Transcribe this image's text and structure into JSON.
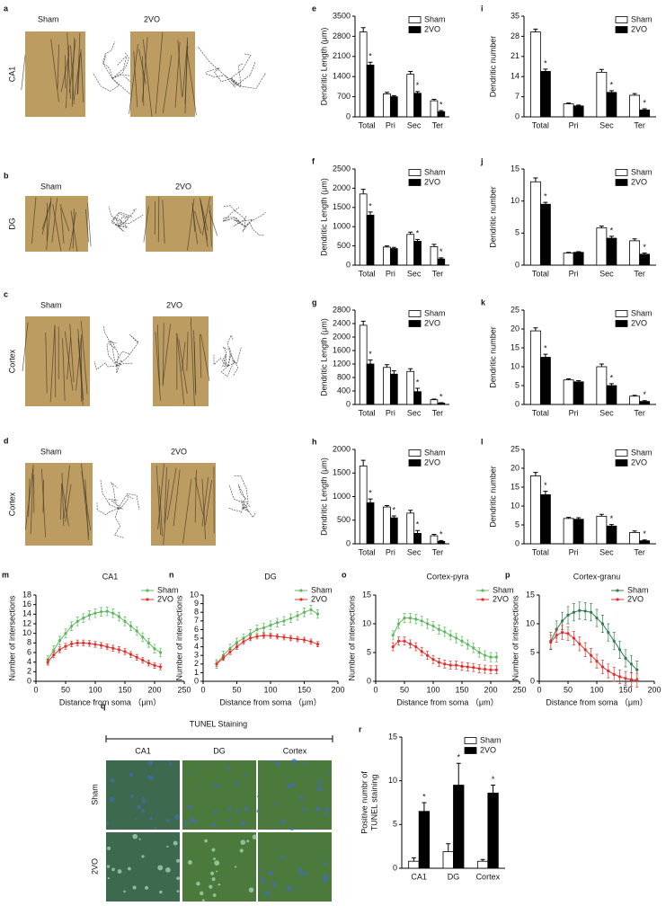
{
  "image_panels": [
    {
      "label": "a",
      "columns": [
        "Sham",
        "2VO"
      ],
      "region": "CA1"
    },
    {
      "label": "b",
      "columns": [
        "Sham",
        "2VO"
      ],
      "region": "DG"
    },
    {
      "label": "c",
      "columns": [
        "Sham",
        "2VO"
      ],
      "region": "Cortex"
    },
    {
      "label": "d",
      "columns": [
        "Sham",
        "2VO"
      ],
      "region": "Cortex"
    }
  ],
  "tunel": {
    "label": "q",
    "title": "TUNEL Staining",
    "columns": [
      "CA1",
      "DG",
      "Cortex"
    ],
    "rows": [
      "Sham",
      "2VO"
    ]
  },
  "chart_data": [
    {
      "type": "bar",
      "label": "e",
      "ylabel": "Dendritic Length (μm)",
      "categories": [
        "Total",
        "Pri",
        "Sec",
        "Ter"
      ],
      "ylim": [
        0,
        3500
      ],
      "yticks": [
        0,
        700,
        1400,
        2100,
        2800,
        3500
      ],
      "series": [
        {
          "name": "Sham",
          "color": "#ffffff",
          "values": [
            2950,
            800,
            1480,
            560
          ],
          "errors": [
            150,
            50,
            100,
            50
          ]
        },
        {
          "name": "2VO",
          "color": "#000000",
          "values": [
            1800,
            700,
            820,
            180
          ],
          "errors": [
            100,
            40,
            60,
            40
          ],
          "markers": [
            "*",
            null,
            "*",
            "*"
          ]
        }
      ]
    },
    {
      "type": "bar",
      "label": "i",
      "ylabel": "Dendritic number",
      "categories": [
        "Total",
        "Pri",
        "Sec",
        "Ter"
      ],
      "ylim": [
        0,
        35
      ],
      "yticks": [
        0,
        7,
        14,
        21,
        28,
        35
      ],
      "series": [
        {
          "name": "Sham",
          "color": "#ffffff",
          "values": [
            29.5,
            4.5,
            15.5,
            7.5
          ],
          "errors": [
            1,
            0.3,
            1,
            0.6
          ]
        },
        {
          "name": "2VO",
          "color": "#000000",
          "values": [
            15.8,
            3.8,
            8.5,
            2.4
          ],
          "errors": [
            0.8,
            0.3,
            0.6,
            0.4
          ],
          "markers": [
            "*",
            null,
            "*",
            "*"
          ]
        }
      ]
    },
    {
      "type": "bar",
      "label": "f",
      "ylabel": "Dendritic Length (μm)",
      "categories": [
        "Total",
        "Pri",
        "Sec",
        "Ter"
      ],
      "ylim": [
        0,
        2500
      ],
      "yticks": [
        0,
        500,
        1000,
        1500,
        2000,
        2500
      ],
      "series": [
        {
          "name": "Sham",
          "color": "#ffffff",
          "values": [
            1850,
            470,
            800,
            480
          ],
          "errors": [
            120,
            30,
            60,
            60
          ]
        },
        {
          "name": "2VO",
          "color": "#000000",
          "values": [
            1300,
            430,
            620,
            160
          ],
          "errors": [
            80,
            30,
            50,
            30
          ],
          "markers": [
            "*",
            null,
            "*",
            "*"
          ]
        }
      ]
    },
    {
      "type": "bar",
      "label": "j",
      "ylabel": "Dendritic number",
      "categories": [
        "Total",
        "Pri",
        "Sec",
        "Ter"
      ],
      "ylim": [
        0,
        15
      ],
      "yticks": [
        0,
        5,
        10,
        15
      ],
      "series": [
        {
          "name": "Sham",
          "color": "#ffffff",
          "values": [
            13,
            1.9,
            5.8,
            3.8
          ],
          "errors": [
            0.6,
            0.1,
            0.3,
            0.3
          ]
        },
        {
          "name": "2VO",
          "color": "#000000",
          "values": [
            9.5,
            2.0,
            4.2,
            1.7
          ],
          "errors": [
            0.3,
            0.1,
            0.3,
            0.2
          ],
          "markers": [
            "*",
            null,
            "*",
            "*"
          ]
        }
      ]
    },
    {
      "type": "bar",
      "label": "g",
      "ylabel": "Dendritic Length (μm)",
      "categories": [
        "Total",
        "Pri",
        "Sec",
        "Ter"
      ],
      "ylim": [
        0,
        2800
      ],
      "yticks": [
        0,
        400,
        800,
        1200,
        1600,
        2000,
        2400,
        2800
      ],
      "series": [
        {
          "name": "Sham",
          "color": "#ffffff",
          "values": [
            2350,
            1100,
            980,
            140
          ],
          "errors": [
            120,
            80,
            80,
            20
          ]
        },
        {
          "name": "2VO",
          "color": "#000000",
          "values": [
            1200,
            900,
            380,
            40
          ],
          "errors": [
            120,
            100,
            100,
            15
          ],
          "markers": [
            "*",
            null,
            "*",
            "*"
          ]
        }
      ]
    },
    {
      "type": "bar",
      "label": "k",
      "ylabel": "Dendritic number",
      "categories": [
        "Total",
        "Pri",
        "Sec",
        "Ter"
      ],
      "ylim": [
        0,
        25
      ],
      "yticks": [
        0,
        5,
        10,
        15,
        20,
        25
      ],
      "series": [
        {
          "name": "Sham",
          "color": "#ffffff",
          "values": [
            19.5,
            6.5,
            10,
            2.2
          ],
          "errors": [
            0.8,
            0.3,
            0.7,
            0.2
          ]
        },
        {
          "name": "2VO",
          "color": "#000000",
          "values": [
            12.5,
            6,
            5,
            0.8
          ],
          "errors": [
            0.8,
            0.3,
            0.5,
            0.2
          ],
          "markers": [
            "*",
            null,
            "*",
            "*"
          ]
        }
      ]
    },
    {
      "type": "bar",
      "label": "h",
      "ylabel": "Dendritic Length (μm)",
      "categories": [
        "Total",
        "Pri",
        "Sec",
        "Ter"
      ],
      "ylim": [
        0,
        2000
      ],
      "yticks": [
        0,
        500,
        1000,
        1500,
        2000
      ],
      "series": [
        {
          "name": "Sham",
          "color": "#ffffff",
          "values": [
            1650,
            780,
            650,
            170
          ],
          "errors": [
            120,
            30,
            60,
            30
          ]
        },
        {
          "name": "2VO",
          "color": "#000000",
          "values": [
            870,
            550,
            220,
            50
          ],
          "errors": [
            80,
            40,
            60,
            20
          ],
          "markers": [
            "*",
            "*",
            "*",
            "*"
          ]
        }
      ]
    },
    {
      "type": "bar",
      "label": "l",
      "ylabel": "Dendritic number",
      "categories": [
        "Total",
        "Pri",
        "Sec",
        "Ter"
      ],
      "ylim": [
        0,
        25
      ],
      "yticks": [
        0,
        5,
        10,
        15,
        20,
        25
      ],
      "series": [
        {
          "name": "Sham",
          "color": "#ffffff",
          "values": [
            18,
            6.7,
            7.3,
            3
          ],
          "errors": [
            0.9,
            0.3,
            0.5,
            0.4
          ]
        },
        {
          "name": "2VO",
          "color": "#000000",
          "values": [
            13,
            6.5,
            4.7,
            0.8
          ],
          "errors": [
            0.9,
            0.4,
            0.4,
            0.2
          ],
          "markers": [
            "*",
            null,
            "*",
            "*"
          ]
        }
      ]
    },
    {
      "type": "line",
      "label": "m",
      "title": "CA1",
      "xlabel": "Distance from soma （μm）",
      "ylabel": "Number of intersections",
      "xlim": [
        0,
        250
      ],
      "xticks": [
        0,
        50,
        100,
        150,
        200,
        250
      ],
      "ylim": [
        0,
        18
      ],
      "yticks": [
        0,
        2,
        4,
        6,
        8,
        10,
        12,
        14,
        16,
        18
      ],
      "x": [
        20,
        30,
        40,
        50,
        60,
        70,
        80,
        90,
        100,
        110,
        120,
        130,
        140,
        150,
        160,
        170,
        180,
        190,
        200,
        210
      ],
      "series": [
        {
          "name": "Sham",
          "color": "#5cb85c",
          "error": 0.9,
          "values": [
            4.5,
            6.5,
            8.5,
            10,
            11.5,
            12.5,
            13.2,
            13.8,
            14.2,
            14.5,
            14.6,
            14.2,
            13.5,
            12.5,
            11.5,
            10.5,
            9.2,
            8,
            6.8,
            6
          ]
        },
        {
          "name": "2VO",
          "color": "#e0302a",
          "error": 0.6,
          "values": [
            4,
            5.5,
            6.6,
            7.3,
            7.8,
            8,
            8,
            7.9,
            7.7,
            7.5,
            7.2,
            6.9,
            6.6,
            6.2,
            5.6,
            5,
            4.4,
            3.8,
            3.3,
            3
          ]
        }
      ]
    },
    {
      "type": "line",
      "label": "n",
      "title": "DG",
      "xlabel": "Distance from soma （μm）",
      "ylabel": "Number of intersections",
      "xlim": [
        0,
        200
      ],
      "xticks": [
        0,
        50,
        100,
        150,
        200
      ],
      "ylim": [
        0,
        10
      ],
      "yticks": [
        0,
        1,
        2,
        3,
        4,
        5,
        6,
        7,
        8,
        9,
        10
      ],
      "x": [
        20,
        30,
        40,
        50,
        60,
        70,
        80,
        90,
        100,
        110,
        120,
        130,
        140,
        150,
        160,
        170
      ],
      "series": [
        {
          "name": "Sham",
          "color": "#5cb85c",
          "error": 0.5,
          "values": [
            2,
            3,
            3.8,
            4.5,
            5,
            5.5,
            6,
            6.2,
            6.5,
            6.8,
            7,
            7.3,
            7.6,
            8,
            8.3,
            7.8
          ]
        },
        {
          "name": "2VO",
          "color": "#e0302a",
          "error": 0.3,
          "values": [
            2,
            2.7,
            3.4,
            4,
            4.6,
            5,
            5.2,
            5.3,
            5.3,
            5.2,
            5.1,
            5,
            4.9,
            4.8,
            4.6,
            4.3
          ]
        }
      ]
    },
    {
      "type": "line",
      "label": "o",
      "title": "Cortex-pyra",
      "xlabel": "Distance from soma （μm）",
      "ylabel": "Number of intersections",
      "xlim": [
        0,
        250
      ],
      "xticks": [
        0,
        50,
        100,
        150,
        200,
        250
      ],
      "ylim": [
        0,
        15
      ],
      "yticks": [
        0,
        5,
        10,
        15
      ],
      "x": [
        30,
        40,
        50,
        60,
        70,
        80,
        90,
        100,
        110,
        120,
        130,
        140,
        150,
        160,
        170,
        180,
        190,
        200,
        210
      ],
      "series": [
        {
          "name": "Sham",
          "color": "#5cb85c",
          "error": 0.8,
          "values": [
            8,
            10,
            11,
            11,
            10.8,
            10.5,
            10,
            9.6,
            9,
            8.6,
            8,
            7.5,
            7,
            6.4,
            5.8,
            5,
            4.5,
            4.2,
            4.2
          ]
        },
        {
          "name": "2VO",
          "color": "#e0302a",
          "error": 0.7,
          "values": [
            6,
            7,
            7,
            6.5,
            6,
            5.2,
            4.5,
            3.8,
            3.3,
            3,
            2.8,
            2.8,
            2.6,
            2.5,
            2.4,
            2.2,
            2.1,
            2,
            2
          ]
        }
      ]
    },
    {
      "type": "line",
      "label": "p",
      "title": "Cortex-granu",
      "xlabel": "Distance from soma （μm）",
      "ylabel": "Number of intersections",
      "xlim": [
        0,
        200
      ],
      "xticks": [
        0,
        50,
        100,
        150,
        200
      ],
      "ylim": [
        0,
        15
      ],
      "yticks": [
        0,
        5,
        10,
        15
      ],
      "x": [
        20,
        30,
        40,
        50,
        60,
        70,
        80,
        90,
        100,
        110,
        120,
        130,
        140,
        150,
        160,
        170
      ],
      "series": [
        {
          "name": "Sham",
          "color": "#2e7d4f",
          "error": 1.5,
          "values": [
            7,
            9,
            10.5,
            11.5,
            12,
            12.3,
            12.2,
            12,
            11,
            10,
            8.5,
            7,
            5.5,
            4,
            3,
            2
          ]
        },
        {
          "name": "2VO",
          "color": "#e0302a",
          "error": 1.2,
          "values": [
            6.8,
            8,
            8.5,
            8.3,
            7.5,
            6.5,
            5.5,
            4.5,
            3.5,
            2.5,
            1.8,
            1.2,
            0.8,
            0.5,
            0.3,
            0.2
          ]
        }
      ]
    },
    {
      "type": "bar",
      "label": "r",
      "ylabel": [
        "Positive numbr of",
        "TUNEL staining"
      ],
      "categories": [
        "CA1",
        "DG",
        "Cortex"
      ],
      "ylim": [
        0,
        15
      ],
      "yticks": [
        0,
        5,
        10,
        15
      ],
      "series": [
        {
          "name": "Sham",
          "color": "#ffffff",
          "values": [
            0.8,
            1.9,
            0.8
          ],
          "errors": [
            0.4,
            0.9,
            0.2
          ]
        },
        {
          "name": "2VO",
          "color": "#000000",
          "values": [
            6.5,
            9.5,
            8.6
          ],
          "errors": [
            1,
            2.5,
            0.9
          ],
          "markers": [
            "*",
            "*",
            "*"
          ]
        }
      ]
    }
  ]
}
